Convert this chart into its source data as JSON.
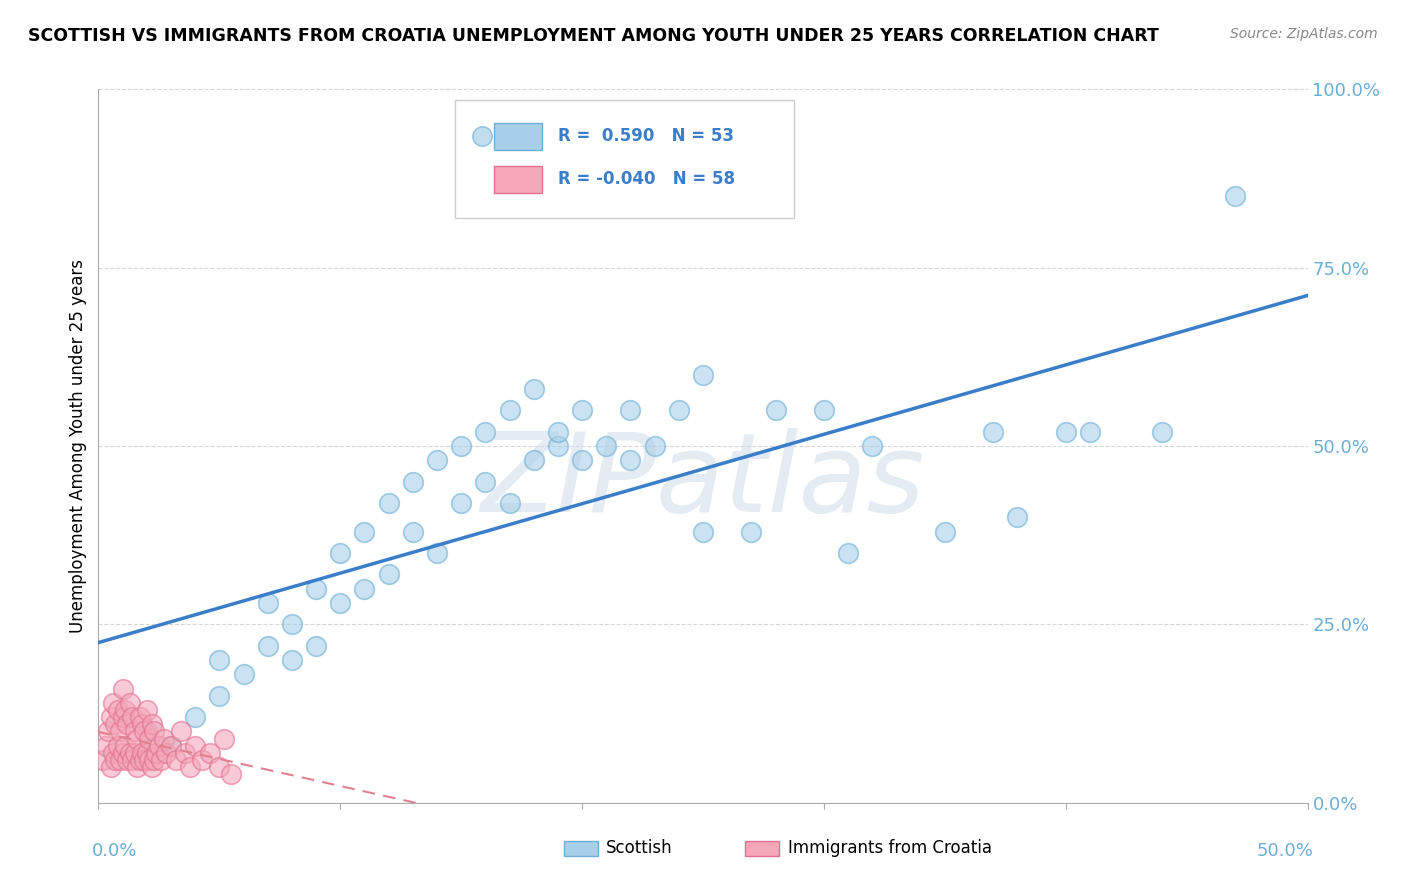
{
  "title": "SCOTTISH VS IMMIGRANTS FROM CROATIA UNEMPLOYMENT AMONG YOUTH UNDER 25 YEARS CORRELATION CHART",
  "source": "Source: ZipAtlas.com",
  "ylabel": "Unemployment Among Youth under 25 years",
  "ytick_vals": [
    0.0,
    0.25,
    0.5,
    0.75,
    1.0
  ],
  "ytick_labels": [
    "0.0%",
    "25.0%",
    "50.0%",
    "75.0%",
    "100.0%"
  ],
  "xlim": [
    0.0,
    0.5
  ],
  "ylim": [
    0.0,
    1.0
  ],
  "legend1_label": "Scottish",
  "legend2_label": "Immigrants from Croatia",
  "R1": 0.59,
  "N1": 53,
  "R2": -0.04,
  "N2": 58,
  "blue_color": "#a8cfe8",
  "blue_edge_color": "#6baed6",
  "pink_color": "#f4a7b9",
  "pink_edge_color": "#e07090",
  "blue_line_color": "#3a7dc9",
  "pink_line_color": "#e08090",
  "watermark": "ZIPatlas",
  "blue_scatter_x": [
    0.02,
    0.03,
    0.04,
    0.05,
    0.05,
    0.06,
    0.07,
    0.07,
    0.08,
    0.08,
    0.09,
    0.09,
    0.1,
    0.1,
    0.11,
    0.11,
    0.12,
    0.12,
    0.13,
    0.13,
    0.14,
    0.14,
    0.15,
    0.15,
    0.16,
    0.16,
    0.17,
    0.17,
    0.18,
    0.18,
    0.19,
    0.19,
    0.2,
    0.2,
    0.21,
    0.22,
    0.22,
    0.23,
    0.24,
    0.25,
    0.25,
    0.27,
    0.28,
    0.3,
    0.31,
    0.32,
    0.35,
    0.37,
    0.38,
    0.4,
    0.41,
    0.44,
    0.47
  ],
  "blue_scatter_y": [
    0.1,
    0.08,
    0.12,
    0.15,
    0.2,
    0.18,
    0.22,
    0.28,
    0.2,
    0.25,
    0.22,
    0.3,
    0.28,
    0.35,
    0.3,
    0.38,
    0.32,
    0.42,
    0.38,
    0.45,
    0.35,
    0.48,
    0.42,
    0.5,
    0.45,
    0.52,
    0.42,
    0.55,
    0.48,
    0.58,
    0.5,
    0.52,
    0.48,
    0.55,
    0.5,
    0.48,
    0.55,
    0.5,
    0.55,
    0.6,
    0.38,
    0.38,
    0.55,
    0.55,
    0.35,
    0.5,
    0.38,
    0.52,
    0.4,
    0.52,
    0.52,
    0.52,
    0.85
  ],
  "pink_scatter_x": [
    0.002,
    0.003,
    0.004,
    0.005,
    0.005,
    0.006,
    0.006,
    0.007,
    0.007,
    0.008,
    0.008,
    0.009,
    0.009,
    0.01,
    0.01,
    0.01,
    0.011,
    0.011,
    0.012,
    0.012,
    0.013,
    0.013,
    0.014,
    0.014,
    0.015,
    0.015,
    0.016,
    0.016,
    0.017,
    0.017,
    0.018,
    0.018,
    0.019,
    0.019,
    0.02,
    0.02,
    0.021,
    0.021,
    0.022,
    0.022,
    0.023,
    0.023,
    0.024,
    0.025,
    0.026,
    0.027,
    0.028,
    0.03,
    0.032,
    0.034,
    0.036,
    0.038,
    0.04,
    0.043,
    0.046,
    0.05,
    0.052,
    0.055
  ],
  "pink_scatter_y": [
    0.06,
    0.08,
    0.1,
    0.05,
    0.12,
    0.07,
    0.14,
    0.06,
    0.11,
    0.08,
    0.13,
    0.06,
    0.1,
    0.07,
    0.12,
    0.16,
    0.08,
    0.13,
    0.06,
    0.11,
    0.07,
    0.14,
    0.06,
    0.12,
    0.07,
    0.1,
    0.05,
    0.09,
    0.06,
    0.12,
    0.07,
    0.11,
    0.06,
    0.1,
    0.07,
    0.13,
    0.06,
    0.09,
    0.05,
    0.11,
    0.06,
    0.1,
    0.07,
    0.08,
    0.06,
    0.09,
    0.07,
    0.08,
    0.06,
    0.1,
    0.07,
    0.05,
    0.08,
    0.06,
    0.07,
    0.05,
    0.09,
    0.04
  ]
}
